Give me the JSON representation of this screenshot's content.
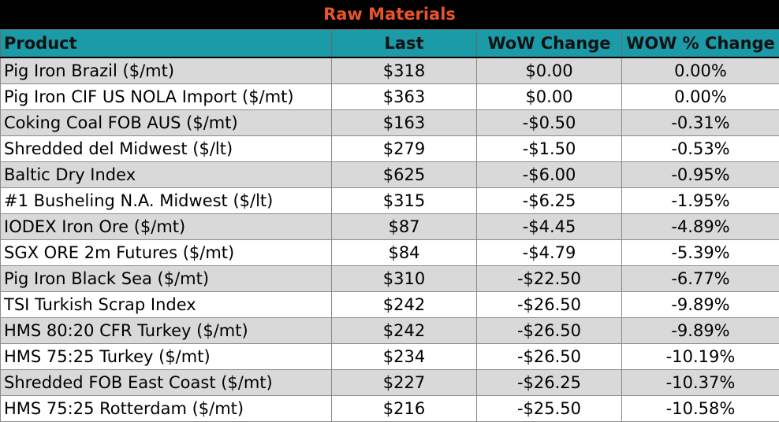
{
  "title": "Raw Materials",
  "colors": {
    "title_bg": "#000000",
    "title_text": "#e8552a",
    "header_bg": "#1b9aa8",
    "row_alt": "#d9d9d9"
  },
  "headers": [
    "Product",
    "Last",
    "WoW Change",
    "WOW % Change"
  ],
  "rows": [
    {
      "product": "Pig Iron Brazil ($/mt)",
      "last": "$318",
      "wow": "$0.00",
      "pct": "0.00%"
    },
    {
      "product": "Pig Iron CIF US NOLA Import ($/mt)",
      "last": "$363",
      "wow": "$0.00",
      "pct": "0.00%"
    },
    {
      "product": "Coking Coal FOB AUS ($/mt)",
      "last": "$163",
      "wow": "-$0.50",
      "pct": "-0.31%"
    },
    {
      "product": "Shredded del  Midwest ($/lt)",
      "last": "$279",
      "wow": "-$1.50",
      "pct": "-0.53%"
    },
    {
      "product": "Baltic Dry Index",
      "last": "$625",
      "wow": "-$6.00",
      "pct": "-0.95%"
    },
    {
      "product": "#1 Busheling N.A. Midwest ($/lt)",
      "last": "$315",
      "wow": "-$6.25",
      "pct": "-1.95%"
    },
    {
      "product": "IODEX  Iron Ore ($/mt)",
      "last": "$87",
      "wow": "-$4.45",
      "pct": "-4.89%"
    },
    {
      "product": "SGX ORE 2m Futures ($/mt)",
      "last": "$84",
      "wow": "-$4.79",
      "pct": "-5.39%"
    },
    {
      "product": "Pig Iron Black Sea ($/mt)",
      "last": "$310",
      "wow": "-$22.50",
      "pct": "-6.77%"
    },
    {
      "product": "TSI Turkish Scrap Index",
      "last": "$242",
      "wow": "-$26.50",
      "pct": "-9.89%"
    },
    {
      "product": "HMS 80:20 CFR Turkey ($/mt)",
      "last": "$242",
      "wow": "-$26.50",
      "pct": "-9.89%"
    },
    {
      "product": "HMS 75:25 Turkey ($/mt)",
      "last": "$234",
      "wow": "-$26.50",
      "pct": "-10.19%"
    },
    {
      "product": "Shredded FOB East Coast ($/mt)",
      "last": "$227",
      "wow": "-$26.25",
      "pct": "-10.37%"
    },
    {
      "product": "HMS 75:25 Rotterdam ($/mt)",
      "last": "$216",
      "wow": "-$25.50",
      "pct": "-10.58%"
    }
  ]
}
